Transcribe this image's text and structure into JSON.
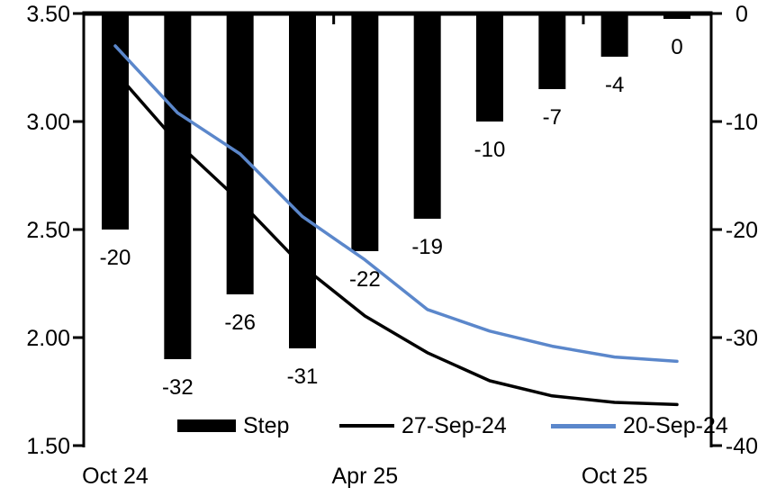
{
  "chart_data": {
    "type": "combo",
    "title": "",
    "categories_count": 10,
    "x_axis": {
      "labels": [
        {
          "index": 0,
          "text": "Oct 24"
        },
        {
          "index": 4,
          "text": "Apr 25"
        },
        {
          "index": 8,
          "text": "Oct 25"
        }
      ],
      "boundary_tick_indices": [
        4,
        8
      ]
    },
    "left_axis": {
      "min": 1.5,
      "max": 3.5,
      "tick_labels": [
        "3.50",
        "3.00",
        "2.50",
        "2.00",
        "1.50"
      ]
    },
    "right_axis": {
      "min": -40,
      "max": 0,
      "tick_labels": [
        "0",
        "-10",
        "-20",
        "-30",
        "-40"
      ]
    },
    "series": [
      {
        "name": "Step",
        "type": "bar",
        "axis": "right",
        "color": "#000000",
        "values": [
          -20,
          -32,
          -26,
          -31,
          -22,
          -19,
          -10,
          -7,
          -4,
          0
        ],
        "data_labels": [
          "-20",
          "-32",
          "-26",
          "-31",
          "-22",
          "-19",
          "-10",
          "-7",
          "-4",
          "0"
        ]
      },
      {
        "name": "27-Sep-24",
        "type": "line",
        "axis": "left",
        "color": "#000000",
        "values": [
          3.23,
          2.9,
          2.63,
          2.33,
          2.1,
          1.93,
          1.8,
          1.73,
          1.7,
          1.69
        ]
      },
      {
        "name": "20-Sep-24",
        "type": "line",
        "axis": "left",
        "color": "#5b87cb",
        "values": [
          3.35,
          3.04,
          2.85,
          2.56,
          2.36,
          2.13,
          2.03,
          1.96,
          1.91,
          1.89
        ]
      }
    ],
    "legend": {
      "position": "bottom-inside",
      "entries": [
        "Step",
        "27-Sep-24",
        "20-Sep-24"
      ]
    }
  }
}
